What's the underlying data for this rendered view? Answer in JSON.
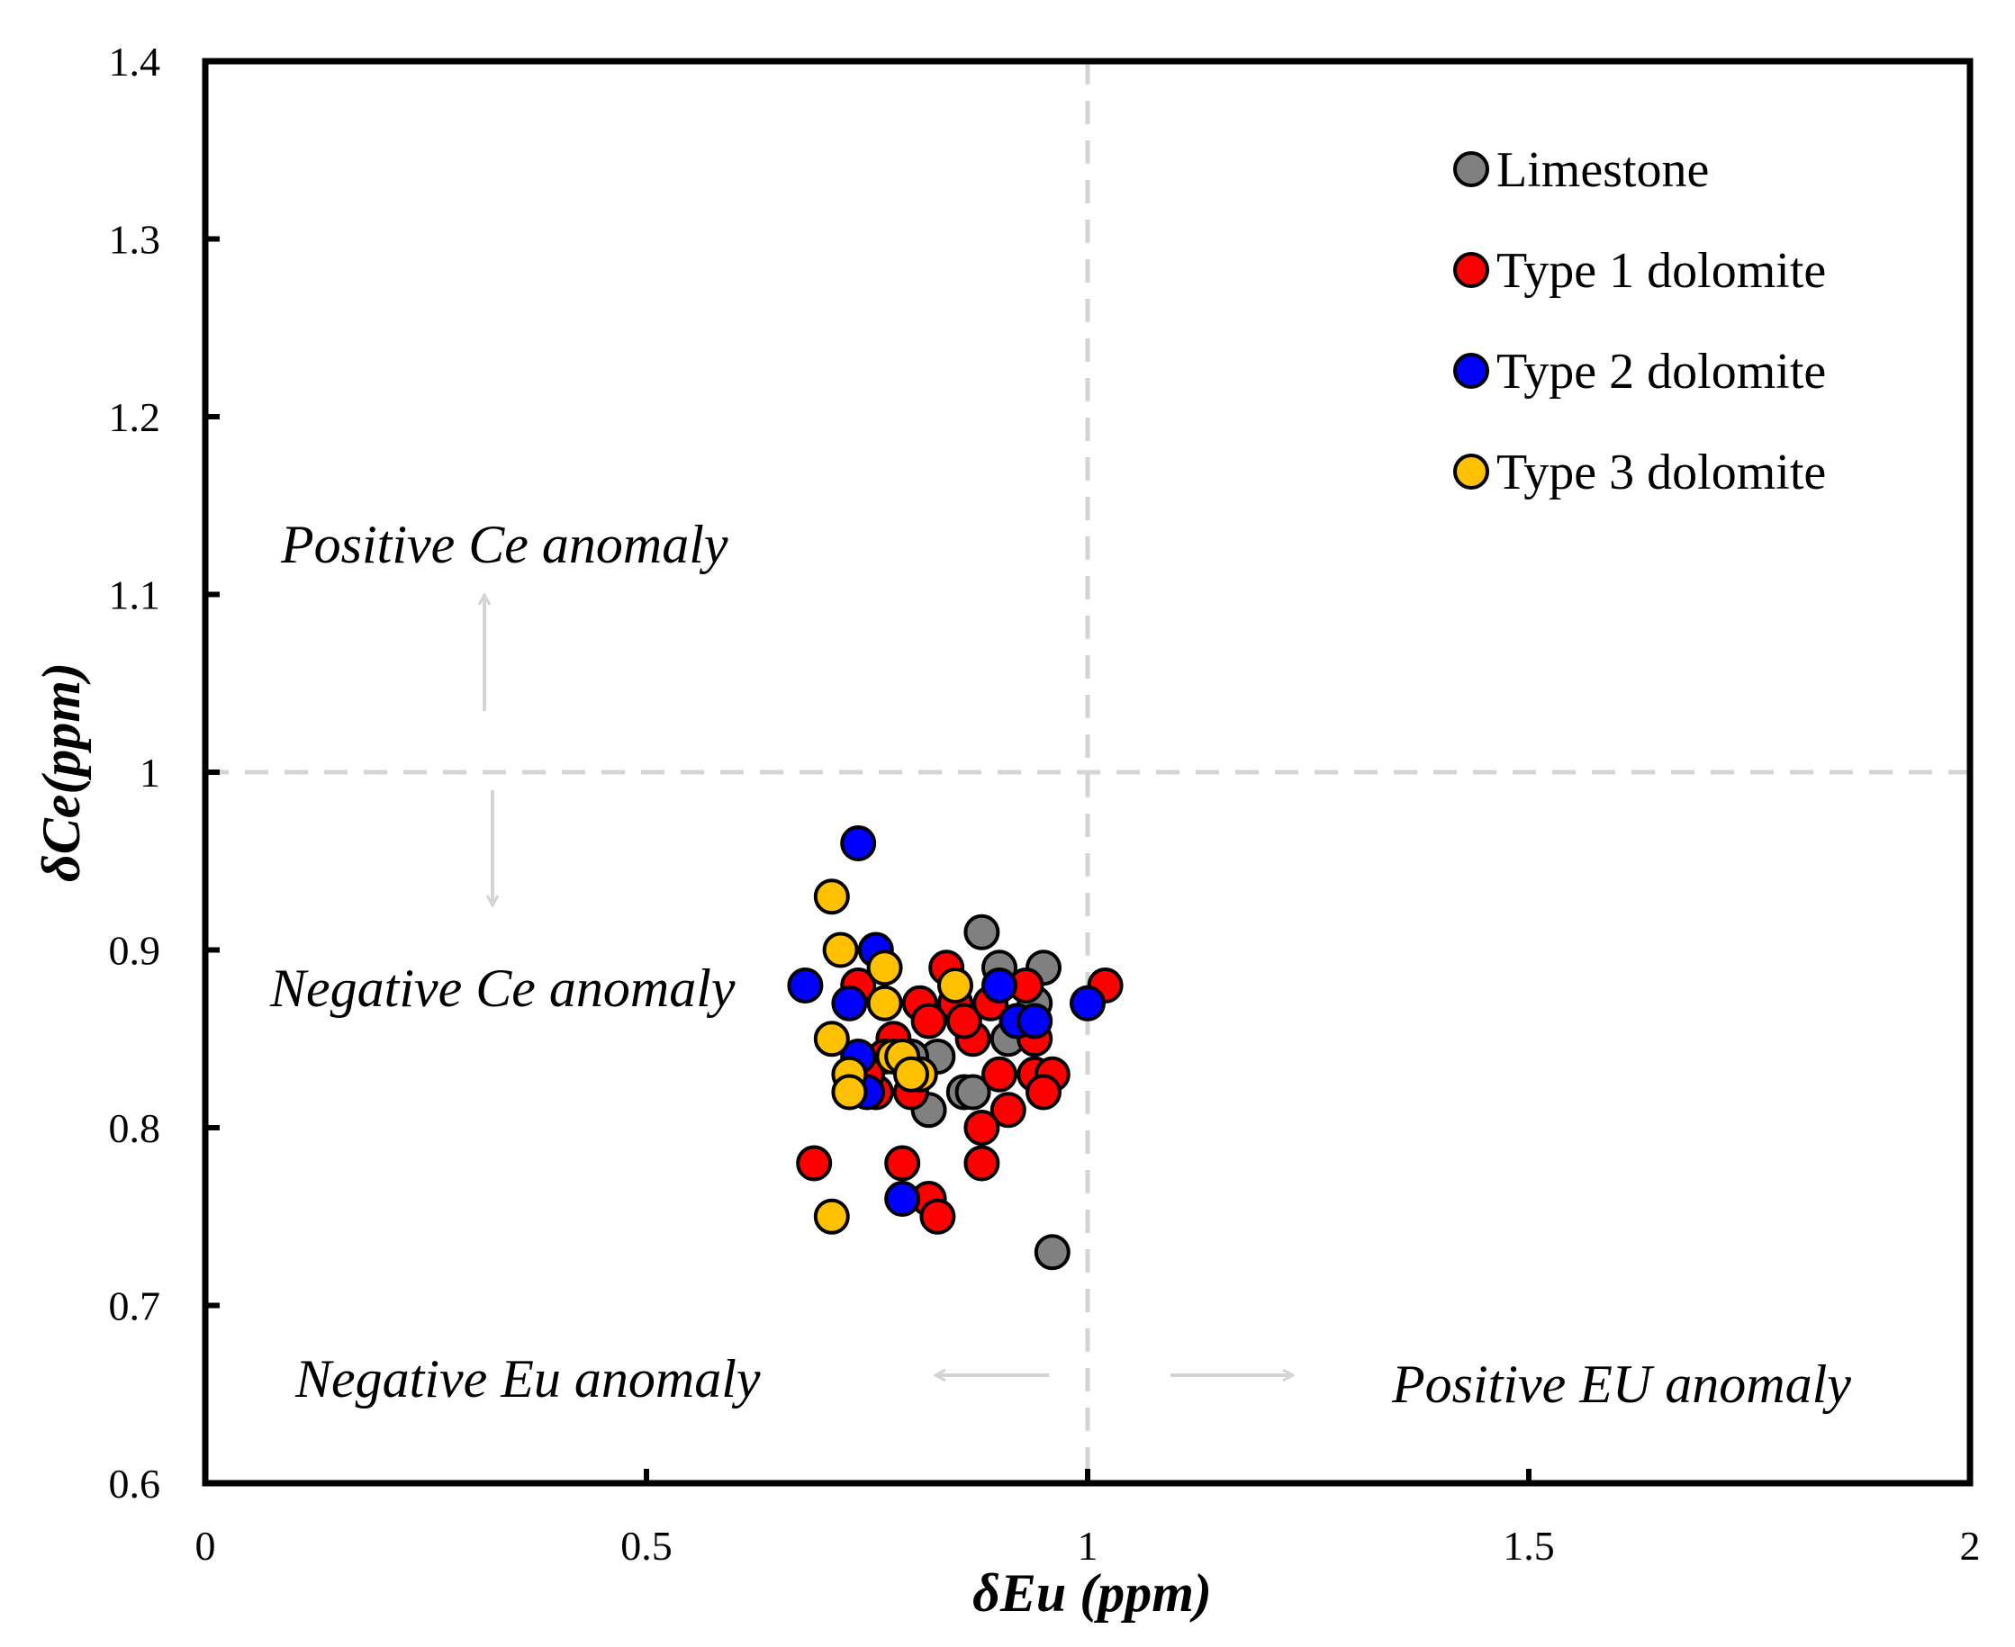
{
  "chart_data": {
    "type": "scatter",
    "xlabel": "δEu (ppm)",
    "ylabel": "δCe(ppm)",
    "xlim": [
      0,
      2
    ],
    "ylim": [
      0.6,
      1.4
    ],
    "xticks": [
      0,
      0.5,
      1,
      1.5,
      2
    ],
    "xtick_labels": [
      "0",
      "0.5",
      "1",
      "1.5",
      "2"
    ],
    "yticks": [
      0.6,
      0.7,
      0.8,
      0.9,
      1,
      1.1,
      1.2,
      1.3,
      1.4
    ],
    "ytick_labels": [
      "0.6",
      "0.7",
      "0.8",
      "0.9",
      "1",
      "1.1",
      "1.2",
      "1.3",
      "1.4"
    ],
    "reference_lines": {
      "x": 1,
      "y": 1
    },
    "legend_position": "top-right",
    "series": [
      {
        "name": "Limestone",
        "color": "#808080",
        "x": [
          0.88,
          0.9,
          0.95,
          0.94,
          0.83,
          0.86,
          0.82,
          0.87,
          0.91,
          0.96,
          0.8
        ],
        "y": [
          0.91,
          0.89,
          0.89,
          0.87,
          0.84,
          0.82,
          0.81,
          0.82,
          0.85,
          0.73,
          0.84
        ]
      },
      {
        "name": "Type 1 dolomite",
        "color": "#ff0000",
        "x": [
          0.84,
          0.93,
          1.02,
          0.81,
          0.85,
          0.74,
          0.78,
          0.87,
          0.9,
          0.94,
          0.96,
          0.95,
          0.91,
          0.88,
          0.88,
          0.79,
          0.82,
          0.83,
          0.69,
          0.76,
          0.8,
          0.86,
          0.82,
          0.89,
          0.92,
          0.77,
          0.75,
          0.94
        ],
        "y": [
          0.89,
          0.88,
          0.88,
          0.87,
          0.87,
          0.88,
          0.85,
          0.85,
          0.83,
          0.83,
          0.83,
          0.82,
          0.81,
          0.8,
          0.78,
          0.78,
          0.76,
          0.75,
          0.78,
          0.82,
          0.82,
          0.86,
          0.86,
          0.87,
          0.86,
          0.84,
          0.83,
          0.85
        ]
      },
      {
        "name": "Type 2 dolomite",
        "color": "#0000ff",
        "x": [
          0.74,
          0.76,
          0.68,
          0.73,
          0.9,
          0.92,
          0.94,
          1.0,
          0.74,
          0.75,
          0.79
        ],
        "y": [
          0.96,
          0.9,
          0.88,
          0.87,
          0.88,
          0.86,
          0.86,
          0.87,
          0.84,
          0.82,
          0.76
        ]
      },
      {
        "name": "Type 3 dolomite",
        "color": "#ffc000",
        "x": [
          0.71,
          0.72,
          0.77,
          0.77,
          0.85,
          0.71,
          0.78,
          0.81,
          0.73,
          0.73,
          0.79,
          0.8,
          0.71
        ],
        "y": [
          0.93,
          0.9,
          0.89,
          0.87,
          0.88,
          0.85,
          0.84,
          0.83,
          0.83,
          0.82,
          0.84,
          0.83,
          0.75
        ]
      }
    ],
    "annotations": {
      "positive_ce": "Positive Ce anomaly",
      "negative_ce": "Negative Ce anomaly",
      "negative_eu": "Negative Eu anomaly",
      "positive_eu": "Positive EU anomaly"
    }
  }
}
